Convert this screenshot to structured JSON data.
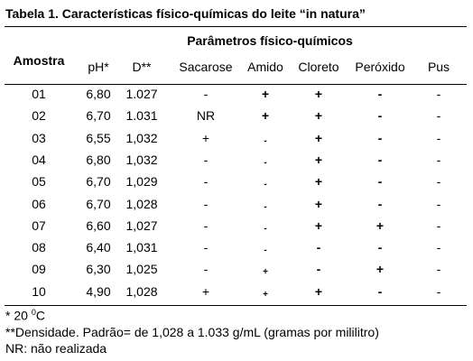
{
  "title": "Tabela 1. Características físico-químicas do leite “in natura”",
  "table": {
    "group_header": "Parâmetros físico-químicos",
    "header": [
      "Amostra",
      "pH*",
      "D**",
      "Sacarose",
      "Amido",
      "Cloreto",
      "Peróxido",
      "Pus"
    ],
    "rows": [
      [
        "01",
        "6,80",
        "1.027",
        "-",
        "+",
        "+",
        "-",
        "-"
      ],
      [
        "02",
        "6,70",
        "1.031",
        "NR",
        "+",
        "+",
        "-",
        "-"
      ],
      [
        "03",
        "6,55",
        "1,032",
        "+",
        "-",
        "+",
        "-",
        "-"
      ],
      [
        "04",
        "6,80",
        "1,032",
        "-",
        "-",
        "+",
        "-",
        "-"
      ],
      [
        "05",
        "6,70",
        "1,029",
        "-",
        "-",
        "+",
        "-",
        "-"
      ],
      [
        "06",
        "6,70",
        "1,028",
        "-",
        "-",
        "+",
        "-",
        "-"
      ],
      [
        "07",
        "6,60",
        "1,027",
        "-",
        "-",
        "+",
        "+",
        "-"
      ],
      [
        "08",
        "6,40",
        "1,031",
        "-",
        "-",
        "-",
        "-",
        "-"
      ],
      [
        "09",
        "6,30",
        "1,025",
        "-",
        "+",
        "-",
        "+",
        "-"
      ],
      [
        "10",
        "4,90",
        "1,028",
        "+",
        "+",
        "+",
        "-",
        "-"
      ]
    ]
  },
  "notes": {
    "temperature": {
      "prefix": "* 20 ",
      "sup": "0",
      "suffix": "C"
    },
    "density": "**Densidade. Padrão= de 1,028 a 1.033 g/mL (gramas por mililitro)",
    "nr": "NR: não realizada"
  }
}
